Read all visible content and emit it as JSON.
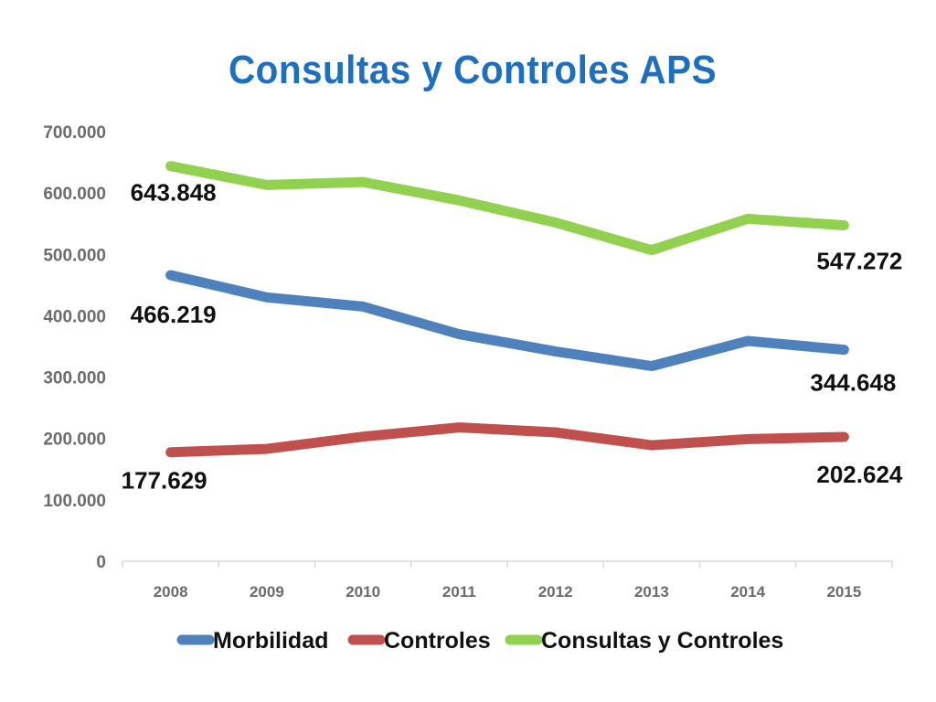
{
  "chart_data": {
    "type": "line",
    "title": "Consultas y Controles APS",
    "xlabel": "",
    "ylabel": "",
    "categories": [
      "2008",
      "2009",
      "2010",
      "2011",
      "2012",
      "2013",
      "2014",
      "2015"
    ],
    "y_ticks": [
      "0",
      "100.000",
      "200.000",
      "300.000",
      "400.000",
      "500.000",
      "600.000",
      "700.000"
    ],
    "ylim": [
      0,
      700000
    ],
    "grid": false,
    "legend_position": "bottom",
    "series": [
      {
        "name": "Morbilidad",
        "color": "#4F81BD",
        "values": [
          466219,
          430000,
          415000,
          370000,
          342000,
          318000,
          359000,
          344648
        ],
        "labels": [
          {
            "index": 0,
            "text": "466.219"
          },
          {
            "index": 7,
            "text": "344.648"
          }
        ]
      },
      {
        "name": "Controles",
        "color": "#C0504D",
        "values": [
          177629,
          183000,
          203000,
          218000,
          210000,
          189000,
          199000,
          202624
        ],
        "labels": [
          {
            "index": 0,
            "text": "177.629"
          },
          {
            "index": 7,
            "text": "202.624"
          }
        ]
      },
      {
        "name": "Consultas y Controles",
        "color": "#92D050",
        "values": [
          643848,
          613000,
          618000,
          588000,
          552000,
          507000,
          558000,
          547272
        ],
        "labels": [
          {
            "index": 0,
            "text": "643.848"
          },
          {
            "index": 7,
            "text": "547.272"
          }
        ]
      }
    ]
  }
}
